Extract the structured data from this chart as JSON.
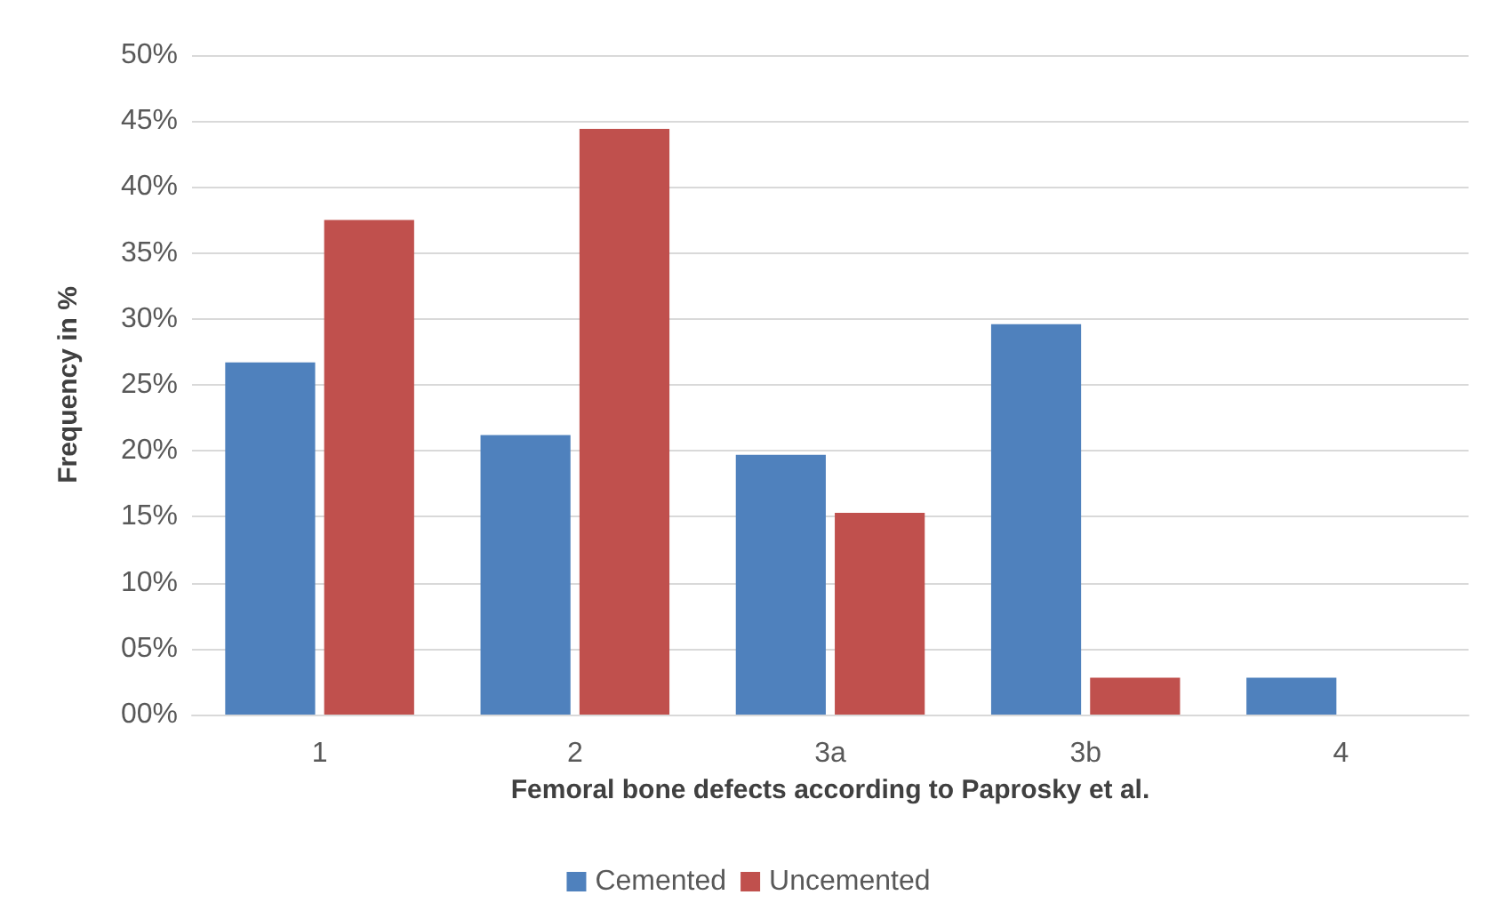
{
  "chart_data": {
    "type": "bar",
    "xlabel": "Femoral bone defects according to Paprosky et al.",
    "ylabel": "Frequency in %",
    "categories": [
      "1",
      "2",
      "3a",
      "3b",
      "4"
    ],
    "series": [
      {
        "name": "Cemented",
        "color": "#4f81bd",
        "values": [
          26.7,
          21.2,
          19.7,
          29.6,
          2.8
        ]
      },
      {
        "name": "Uncemented",
        "color": "#c0504d",
        "values": [
          37.5,
          44.4,
          15.3,
          2.8,
          0
        ]
      }
    ],
    "ylim": [
      0,
      50
    ],
    "yticks": [
      {
        "value": 0,
        "label": "00%"
      },
      {
        "value": 5,
        "label": "05%"
      },
      {
        "value": 10,
        "label": "10%"
      },
      {
        "value": 15,
        "label": "15%"
      },
      {
        "value": 20,
        "label": "20%"
      },
      {
        "value": 25,
        "label": "25%"
      },
      {
        "value": 30,
        "label": "30%"
      },
      {
        "value": 35,
        "label": "35%"
      },
      {
        "value": 40,
        "label": "40%"
      },
      {
        "value": 45,
        "label": "45%"
      },
      {
        "value": 50,
        "label": "50%"
      }
    ],
    "grid": "y",
    "legend": "bottom"
  }
}
